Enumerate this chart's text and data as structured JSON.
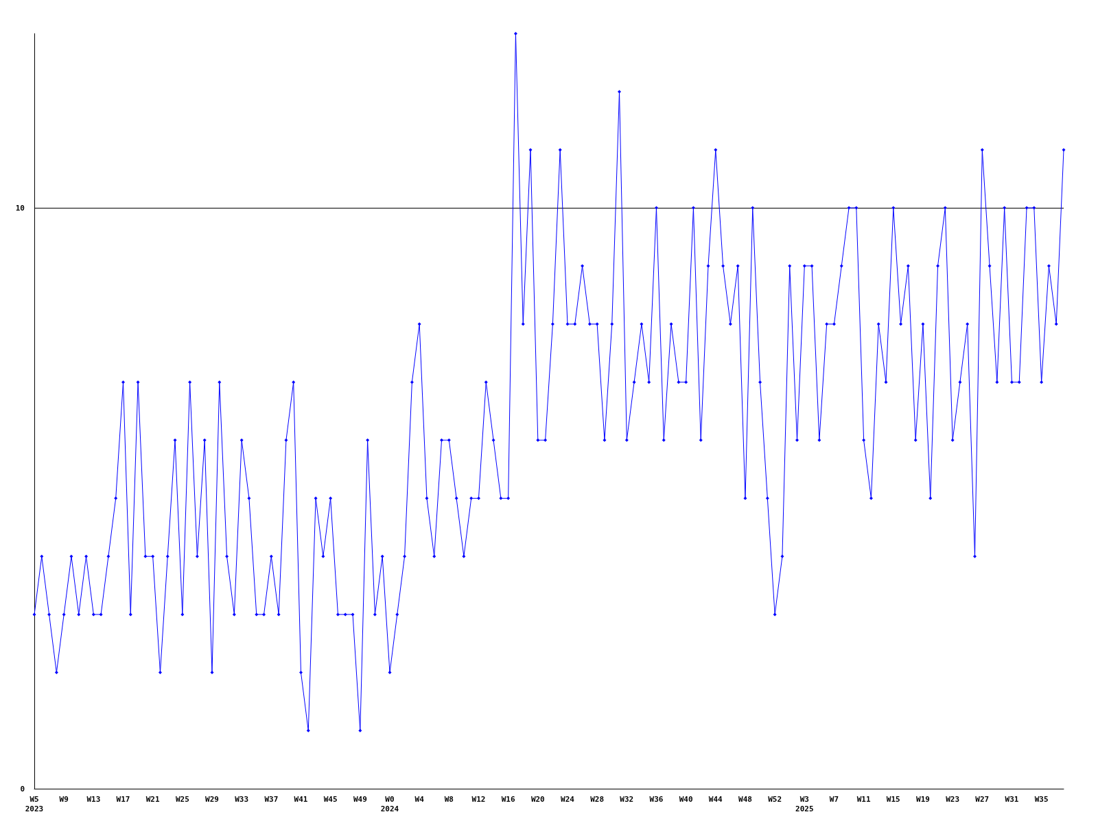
{
  "chart_data": {
    "type": "line",
    "categories": [
      "W5\n2023",
      null,
      null,
      null,
      "W9",
      null,
      null,
      null,
      "W13",
      null,
      null,
      null,
      "W17",
      null,
      null,
      null,
      "W21",
      null,
      null,
      null,
      "W25",
      null,
      null,
      null,
      "W29",
      null,
      null,
      null,
      "W33",
      null,
      null,
      null,
      "W37",
      null,
      null,
      null,
      "W41",
      null,
      null,
      null,
      "W45",
      null,
      null,
      null,
      "W49",
      null,
      null,
      null,
      "W0\n2024",
      null,
      null,
      null,
      "W4",
      null,
      null,
      null,
      "W8",
      null,
      null,
      null,
      "W12",
      null,
      null,
      null,
      "W16",
      null,
      null,
      null,
      "W20",
      null,
      null,
      null,
      "W24",
      null,
      null,
      null,
      "W28",
      null,
      null,
      null,
      "W32",
      null,
      null,
      null,
      "W36",
      null,
      null,
      null,
      "W40",
      null,
      null,
      null,
      "W44",
      null,
      null,
      null,
      "W48",
      null,
      null,
      null,
      "W52",
      null,
      null,
      null,
      "W3\n2025",
      null,
      null,
      null,
      "W7",
      null,
      null,
      null,
      "W11",
      null,
      null,
      null,
      "W15",
      null,
      null,
      null,
      "W19",
      null,
      null,
      null,
      "W23",
      null,
      null,
      null,
      "W27",
      null,
      null,
      null,
      "W31",
      null,
      null,
      null,
      "W35",
      null,
      null,
      null
    ],
    "series": [
      {
        "color": "#0000ff",
        "values": [
          3,
          4,
          3,
          2,
          3,
          4,
          3,
          4,
          3,
          3,
          4,
          5,
          7,
          3,
          7,
          4,
          4,
          2,
          4,
          6,
          3,
          7,
          4,
          6,
          2,
          7,
          4,
          3,
          6,
          5,
          3,
          3,
          4,
          3,
          6,
          7,
          2,
          1,
          5,
          4,
          5,
          3,
          3,
          3,
          1,
          6,
          3,
          4,
          2,
          3,
          4,
          7,
          8,
          5,
          4,
          6,
          6,
          5,
          4,
          5,
          5,
          7,
          6,
          5,
          5,
          13,
          8,
          11,
          6,
          6,
          8,
          11,
          8,
          8,
          9,
          8,
          8,
          6,
          8,
          12,
          6,
          7,
          8,
          7,
          10,
          6,
          8,
          7,
          7,
          10,
          6,
          9,
          11,
          9,
          8,
          9,
          5,
          10,
          7,
          5,
          3,
          4,
          9,
          6,
          9,
          9,
          6,
          8,
          8,
          9,
          10,
          10,
          6,
          5,
          8,
          7,
          10,
          8,
          9,
          6,
          8,
          5,
          9,
          10,
          6,
          7,
          8,
          4,
          11,
          9,
          7,
          10,
          7,
          7,
          10,
          10,
          7,
          9,
          8,
          11
        ]
      }
    ],
    "ylim": [
      0,
      13
    ],
    "yticks": [
      0,
      10
    ],
    "grid": "y",
    "marker": "diamond",
    "line_style": "solid"
  }
}
